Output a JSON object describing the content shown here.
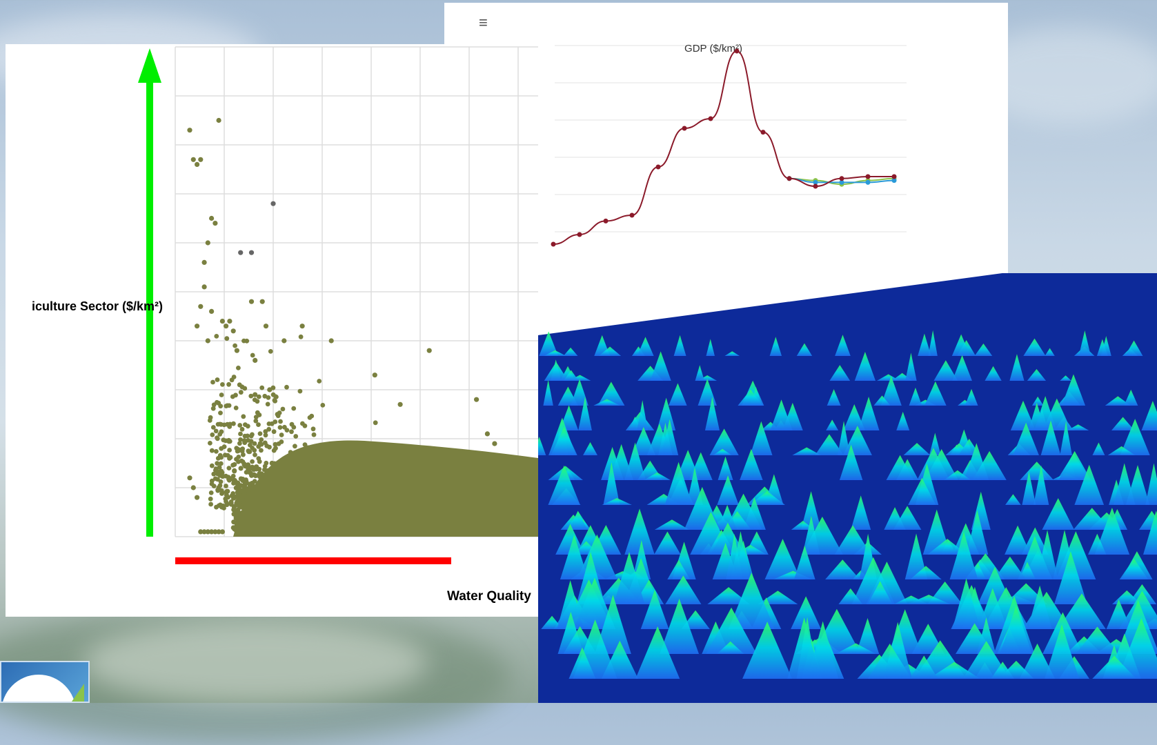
{
  "scatter": {
    "y_axis_label": "iculture Sector ($/km²)",
    "x_axis_label": "Water Quality",
    "colors": {
      "point": "#7a8040",
      "outlier": "#666666",
      "y_arrow": "#00ee00",
      "x_bar": "#ff0000",
      "grid": "#dddddd"
    }
  },
  "line_chart": {
    "menu_icon": "hamburger-menu-icon",
    "colors": {
      "main": "#8b1a2a",
      "green": "#8bc34a",
      "blue": "#2a9ad8"
    }
  },
  "surface": {
    "colors": {
      "base": "#0d2a9a",
      "low": "#1e6cf0",
      "mid": "#00d8e8",
      "high": "#30ff60"
    }
  },
  "collapse_button": {
    "icon": "chevron-left-icon",
    "label": "<"
  },
  "logo": {
    "icon": "organization-logo-icon"
  },
  "chart_data": [
    {
      "type": "scatter",
      "title": "",
      "xlabel": "Water Quality",
      "ylabel": "iculture Sector ($/km²)",
      "grid": true,
      "series": [
        {
          "x": [
            0.04,
            0.05,
            0.06,
            0.07,
            0.12,
            0.11,
            0.1,
            0.09,
            0.08,
            0.13,
            0.08,
            0.07,
            0.06,
            0.1,
            0.09,
            0.14,
            0.15,
            0.21,
            0.24,
            0.25,
            0.26,
            0.22,
            0.22,
            0.17,
            0.16,
            0.3,
            0.35,
            0.43,
            0.55,
            0.62,
            0.7,
            0.83,
            0.88,
            0.86,
            0.04,
            0.05,
            0.06,
            0.07,
            0.08,
            0.09,
            0.1,
            0.11,
            0.12,
            0.13
          ],
          "y": [
            0.83,
            0.77,
            0.76,
            0.77,
            0.85,
            0.64,
            0.65,
            0.6,
            0.56,
            0.44,
            0.51,
            0.47,
            0.43,
            0.46,
            0.4,
            0.43,
            0.44,
            0.48,
            0.48,
            0.43,
            0.3,
            0.36,
            0.29,
            0.38,
            0.42,
            0.4,
            0.43,
            0.4,
            0.33,
            0.27,
            0.38,
            0.28,
            0.19,
            0.21,
            0.12,
            0.1,
            0.08,
            0.01,
            0.01,
            0.01,
            0.01,
            0.01,
            0.01,
            0.01
          ]
        },
        {
          "x": [
            0.27,
            0.18,
            0.21
          ],
          "y": [
            0.68,
            0.58,
            0.58
          ]
        }
      ]
    },
    {
      "type": "line",
      "title": "GDP ($/km²)",
      "series": [
        {
          "values": [
            0.0,
            0.05,
            0.12,
            0.15,
            0.4,
            0.6,
            0.65,
            1.0,
            0.58,
            0.34,
            0.3,
            0.34,
            0.35,
            0.35
          ]
        },
        {
          "values": [
            null,
            null,
            null,
            null,
            null,
            null,
            null,
            null,
            null,
            0.34,
            0.33,
            0.31,
            0.33,
            0.34
          ]
        },
        {
          "values": [
            null,
            null,
            null,
            null,
            null,
            null,
            null,
            null,
            null,
            0.34,
            0.32,
            0.32,
            0.32,
            0.33
          ]
        }
      ]
    }
  ]
}
